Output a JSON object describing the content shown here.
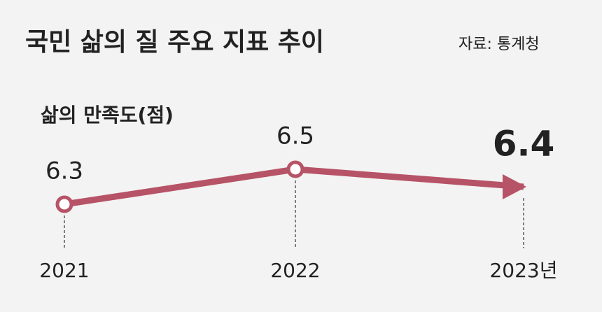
{
  "chart_data": {
    "type": "line",
    "title": "국민 삶의 질 주요 지표 추이",
    "source": "자료: 통계청",
    "subtitle": "삶의 만족도(점)",
    "categories": [
      "2021",
      "2022",
      "2023년"
    ],
    "values": [
      6.3,
      6.5,
      6.4
    ],
    "color": "#b75367"
  }
}
